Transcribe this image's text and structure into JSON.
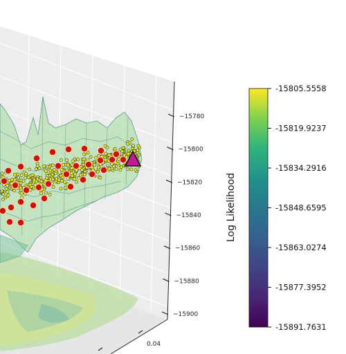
{
  "chart_data": {
    "type": "scatter",
    "projection": "3d",
    "surface": "semi-transparent viridis-colored log-likelihood surface with a floor contour projection",
    "z_axis": {
      "ticks": [
        -15780,
        -15800,
        -15820,
        -15840,
        -15860,
        -15880,
        -15900
      ],
      "tick_labels": [
        "−15780",
        "−15800",
        "−15820",
        "−15840",
        "−15860",
        "−15880",
        "−15900"
      ],
      "range": [
        -15905,
        -15770
      ]
    },
    "x_axis": {
      "tick_labels": [
        "0.04"
      ]
    },
    "colorbar": {
      "label": "Log Likelihood",
      "colormap": "viridis",
      "range": [
        -15891.7631,
        -15805.5558
      ],
      "ticks": [
        "-15805.5558",
        "-15819.9237",
        "-15834.2916",
        "-15848.6595",
        "-15863.0274",
        "-15877.3952",
        "-15891.7631"
      ]
    },
    "markers": {
      "samples": {
        "shape": "circle",
        "color": "#e8f02a",
        "edge": "#333333",
        "approx_count": 450
      },
      "highlighted": {
        "shape": "circle",
        "color": "#cc1111"
      },
      "best": {
        "shape": "triangle",
        "color": "#cc1199",
        "edge": "#111111"
      }
    },
    "grid": true
  }
}
